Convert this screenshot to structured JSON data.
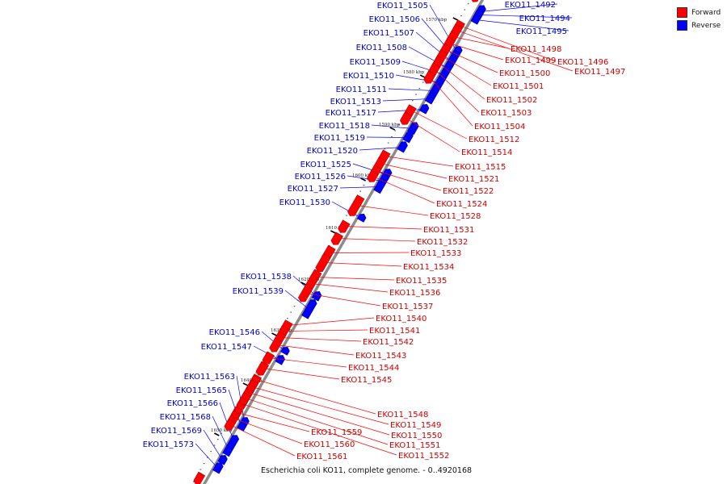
{
  "legend": {
    "forward": {
      "label": "Forward",
      "color": "#ff0000"
    },
    "reverse": {
      "label": "Reverse",
      "color": "#0000ff"
    }
  },
  "caption": "Escherichia coli KO11, complete genome. - 0..4920168",
  "backbone_color": "#8c8c8c",
  "scale_labels": [
    "1570 kbp",
    "1580 kbp",
    "1590 kbp",
    "1600 kbp",
    "1610 kbp",
    "1620 kbp",
    "1630 kbp",
    "1640 kbp",
    "1650 kbp"
  ],
  "reverse_genes": [
    "EKO11_1492",
    "EKO11_1494",
    "EKO11_1495",
    "EKO11_1505",
    "EKO11_1506",
    "EKO11_1507",
    "EKO11_1508",
    "EKO11_1509",
    "EKO11_1510",
    "EKO11_1511",
    "EKO11_1513",
    "EKO11_1517",
    "EKO11_1518",
    "EKO11_1519",
    "EKO11_1520",
    "EKO11_1525",
    "EKO11_1526",
    "EKO11_1527",
    "EKO11_1530",
    "EKO11_1538",
    "EKO11_1539",
    "EKO11_1546",
    "EKO11_1547",
    "EKO11_1563",
    "EKO11_1565",
    "EKO11_1566",
    "EKO11_1568",
    "EKO11_1569",
    "EKO11_1573"
  ],
  "forward_genes": [
    "EKO11_1496",
    "EKO11_1497",
    "EKO11_1498",
    "EKO11_1499",
    "EKO11_1500",
    "EKO11_1501",
    "EKO11_1502",
    "EKO11_1503",
    "EKO11_1504",
    "EKO11_1512",
    "EKO11_1514",
    "EKO11_1515",
    "EKO11_1521",
    "EKO11_1522",
    "EKO11_1524",
    "EKO11_1528",
    "EKO11_1531",
    "EKO11_1532",
    "EKO11_1533",
    "EKO11_1534",
    "EKO11_1535",
    "EKO11_1536",
    "EKO11_1537",
    "EKO11_1540",
    "EKO11_1541",
    "EKO11_1542",
    "EKO11_1543",
    "EKO11_1544",
    "EKO11_1545",
    "EKO11_1548",
    "EKO11_1549",
    "EKO11_1550",
    "EKO11_1551",
    "EKO11_1552",
    "EKO11_1559",
    "EKO11_1560",
    "EKO11_1561"
  ]
}
